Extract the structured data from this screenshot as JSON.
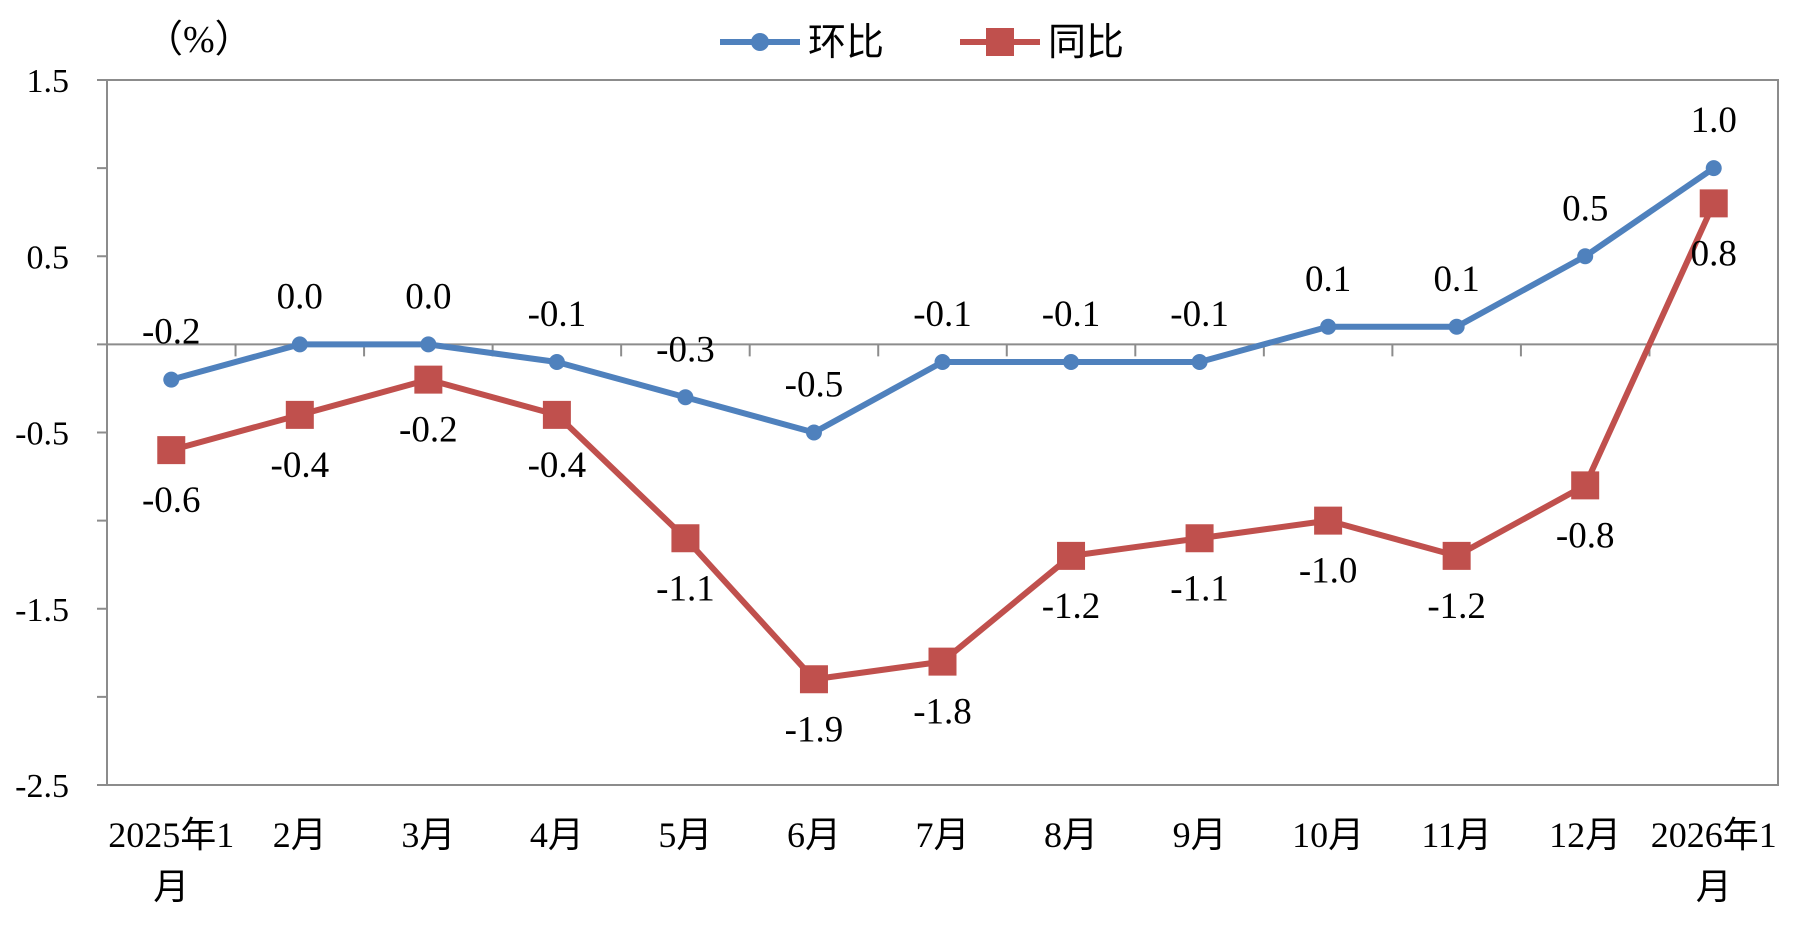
{
  "chart_data": {
    "type": "line",
    "unit_label": "（%）",
    "categories": [
      "2025年1月",
      "2月",
      "3月",
      "4月",
      "5月",
      "6月",
      "7月",
      "8月",
      "9月",
      "10月",
      "11月",
      "12月",
      "2026年1月"
    ],
    "category_lines": [
      [
        "2025年1",
        "月"
      ],
      [
        "2月"
      ],
      [
        "3月"
      ],
      [
        "4月"
      ],
      [
        "5月"
      ],
      [
        "6月"
      ],
      [
        "7月"
      ],
      [
        "8月"
      ],
      [
        "9月"
      ],
      [
        "10月"
      ],
      [
        "11月"
      ],
      [
        "12月"
      ],
      [
        "2026年1",
        "月"
      ]
    ],
    "series": [
      {
        "name": "环比",
        "color": "#4F81BD",
        "marker": "circle",
        "values": [
          -0.2,
          0.0,
          0.0,
          -0.1,
          -0.3,
          -0.5,
          -0.1,
          -0.1,
          -0.1,
          0.1,
          0.1,
          0.5,
          1.0
        ],
        "labels": [
          "-0.2",
          "0.0",
          "0.0",
          "-0.1",
          "-0.3",
          "-0.5",
          "-0.1",
          "-0.1",
          "-0.1",
          "0.1",
          "0.1",
          "0.5",
          "1.0"
        ]
      },
      {
        "name": "同比",
        "color": "#C0504D",
        "marker": "square",
        "values": [
          -0.6,
          -0.4,
          -0.2,
          -0.4,
          -1.1,
          -1.9,
          -1.8,
          -1.2,
          -1.1,
          -1.0,
          -1.2,
          -0.8,
          0.8
        ],
        "labels": [
          "-0.6",
          "-0.4",
          "-0.2",
          "-0.4",
          "-1.1",
          "-1.9",
          "-1.8",
          "-1.2",
          "-1.1",
          "-1.0",
          "-1.2",
          "-0.8",
          "0.8"
        ]
      }
    ],
    "ylim": [
      -2.5,
      1.5
    ],
    "yticks": [
      "1.5",
      "0.5",
      "-0.5",
      "-1.5",
      "-2.5"
    ],
    "ytick_values": [
      1.5,
      0.5,
      -0.5,
      -1.5,
      -2.5
    ],
    "minor_yticks": [
      1.0,
      0.0,
      -1.0,
      -2.0
    ],
    "legend": "top-center",
    "grid": false
  }
}
